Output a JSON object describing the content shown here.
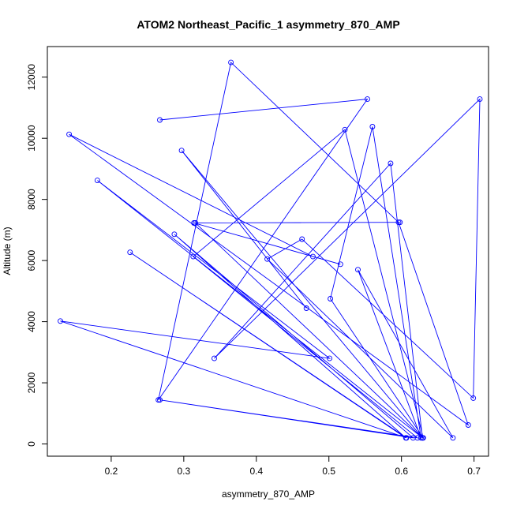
{
  "chart_data": {
    "type": "line",
    "markers": true,
    "title": "ATOM2 Northeast_Pacific_1 asymmetry_870_AMP",
    "xlabel": "asymmetry_870_AMP",
    "ylabel": "Altitude (m)",
    "xlim": [
      0.112,
      0.72
    ],
    "ylim": [
      -400,
      13000
    ],
    "x_ticks": [
      0.2,
      0.3,
      0.4,
      0.5,
      0.6,
      0.7
    ],
    "x_tick_labels": [
      "0.2",
      "0.3",
      "0.4",
      "0.5",
      "0.6",
      "0.7"
    ],
    "y_ticks": [
      0,
      2000,
      4000,
      6000,
      8000,
      10000,
      12000
    ],
    "y_tick_labels": [
      "0",
      "2000",
      "4000",
      "6000",
      "8000",
      "10000",
      "12000"
    ],
    "grid": false,
    "color": "#0000ff",
    "series": [
      {
        "x": [
          0.267,
          0.553,
          0.265,
          0.365,
          0.596,
          0.692,
          0.142,
          0.478,
          0.516,
          0.314,
          0.598,
          0.316,
          0.629,
          0.181,
          0.501,
          0.13,
          0.607,
          0.226,
          0.606,
          0.287,
          0.616,
          0.267,
          0.622,
          0.313,
          0.522,
          0.63,
          0.502,
          0.56,
          0.627,
          0.54,
          0.671,
          0.415,
          0.463,
          0.699,
          0.708,
          0.342,
          0.585,
          0.629,
          0.297,
          0.469
        ],
        "y": [
          10600,
          11280,
          1440,
          12480,
          7250,
          620,
          10130,
          6130,
          5880,
          7230,
          7250,
          7230,
          200,
          8620,
          2800,
          4020,
          200,
          6270,
          200,
          6860,
          200,
          1440,
          200,
          6130,
          10280,
          200,
          4750,
          10380,
          200,
          5700,
          200,
          6050,
          6700,
          1500,
          11280,
          2800,
          9180,
          200,
          9600,
          4440
        ]
      }
    ]
  }
}
